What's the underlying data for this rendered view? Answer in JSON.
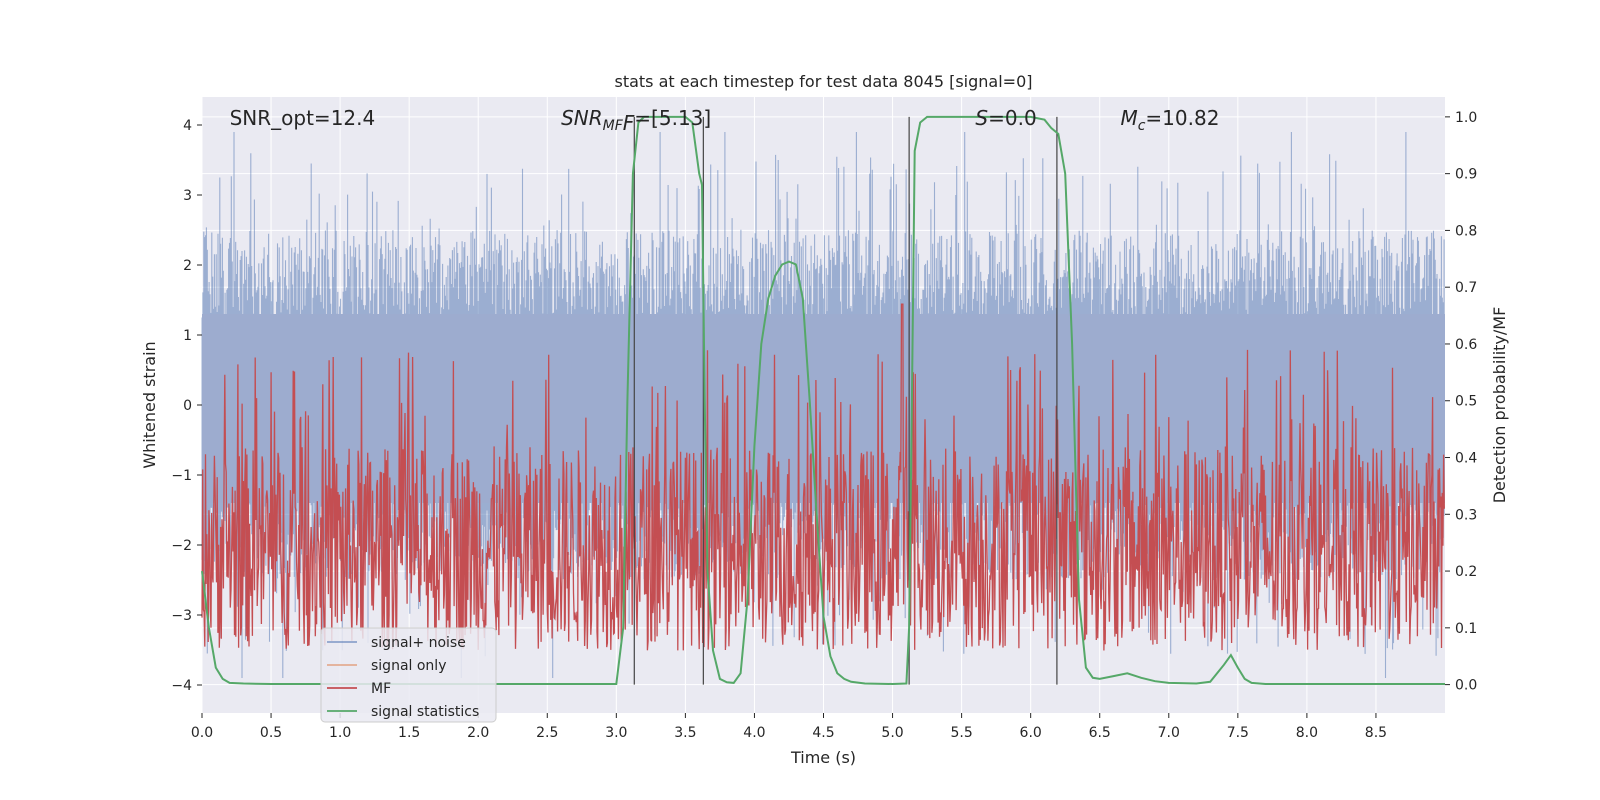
{
  "chart_data": {
    "type": "line",
    "title": "stats at each timestep for test data 8045 [signal=0]",
    "xlabel": "Time (s)",
    "ylabel_left": "Whitened strain",
    "ylabel_right": "Detection probability/MF",
    "xlim": [
      0.0,
      9.0
    ],
    "ylim_left": [
      -4.4,
      4.4
    ],
    "ylim_right": [
      -0.05,
      1.035
    ],
    "x_ticks": [
      "0.0",
      "0.5",
      "1.0",
      "1.5",
      "2.0",
      "2.5",
      "3.0",
      "3.5",
      "4.0",
      "4.5",
      "5.0",
      "5.5",
      "6.0",
      "6.5",
      "7.0",
      "7.5",
      "8.0",
      "8.5"
    ],
    "x_tick_values": [
      0.0,
      0.5,
      1.0,
      1.5,
      2.0,
      2.5,
      3.0,
      3.5,
      4.0,
      4.5,
      5.0,
      5.5,
      6.0,
      6.5,
      7.0,
      7.5,
      8.0,
      8.5
    ],
    "y_ticks_left": [
      "4",
      "3",
      "2",
      "1",
      "0",
      "−1",
      "−2",
      "−3",
      "−4"
    ],
    "y_tick_values_left": [
      4,
      3,
      2,
      1,
      0,
      -1,
      -2,
      -3,
      -4
    ],
    "y_ticks_right": [
      "1.0",
      "0.9",
      "0.8",
      "0.7",
      "0.6",
      "0.5",
      "0.4",
      "0.3",
      "0.2",
      "0.1",
      "0.0"
    ],
    "y_tick_values_right": [
      1.0,
      0.9,
      0.8,
      0.7,
      0.6,
      0.5,
      0.4,
      0.3,
      0.2,
      0.1,
      0.0
    ],
    "annotations": [
      {
        "text": "SNR_opt=12.4",
        "x": 0.2
      },
      {
        "text": "SNR",
        "sub": "MF",
        "rest": "F=[5.13]",
        "x": 2.6,
        "italic": true
      },
      {
        "text": "S",
        "rest": "=0.0",
        "x": 5.6,
        "italic": true
      },
      {
        "text": "M",
        "sub": "c",
        "rest": "=10.82",
        "x": 6.65,
        "italic": true
      }
    ],
    "legend": {
      "placement": "lower-left",
      "entries": [
        {
          "label": "signal+ noise",
          "color": "#4c72b0"
        },
        {
          "label": "signal only",
          "color": "#dd8452"
        },
        {
          "label": "MF",
          "color": "#c44e52"
        },
        {
          "label": "signal statistics",
          "color": "#55a868"
        }
      ]
    },
    "series": [
      {
        "name": "signal+ noise",
        "description": "dense whitened strain noise, roughly within ±2.5 with spikes to ±4",
        "amplitude": 2.5
      },
      {
        "name": "signal only",
        "values": []
      },
      {
        "name": "MF",
        "description": "matched filter output between 0.0 and 0.6 (right axis), spike ~0.67 near t=5.07",
        "range": [
          0.0,
          0.6
        ]
      },
      {
        "name": "signal statistics",
        "x": [
          0.0,
          0.05,
          0.1,
          0.15,
          0.2,
          0.3,
          0.5,
          1.0,
          2.0,
          3.0,
          3.05,
          3.08,
          3.12,
          3.16,
          3.2,
          3.22,
          3.3,
          3.5,
          3.55,
          3.6,
          3.62,
          3.64,
          3.66,
          3.7,
          3.75,
          3.8,
          3.85,
          3.9,
          3.95,
          4.0,
          4.05,
          4.1,
          4.15,
          4.2,
          4.25,
          4.3,
          4.35,
          4.4,
          4.45,
          4.5,
          4.55,
          4.6,
          4.65,
          4.7,
          4.8,
          5.0,
          5.1,
          5.12,
          5.14,
          5.16,
          5.2,
          5.25,
          5.3,
          6.0,
          6.1,
          6.15,
          6.2,
          6.25,
          6.3,
          6.35,
          6.4,
          6.45,
          6.5,
          6.6,
          6.7,
          6.8,
          6.9,
          7.0,
          7.2,
          7.3,
          7.35,
          7.4,
          7.45,
          7.5,
          7.55,
          7.6,
          7.7,
          8.0,
          9.0
        ],
        "values": [
          0.2,
          0.1,
          0.03,
          0.01,
          0.003,
          0.002,
          0.001,
          0.001,
          0.001,
          0.001,
          0.1,
          0.5,
          0.9,
          0.99,
          1.0,
          1.0,
          1.0,
          1.0,
          0.99,
          0.9,
          0.88,
          0.5,
          0.2,
          0.06,
          0.01,
          0.004,
          0.003,
          0.02,
          0.15,
          0.42,
          0.6,
          0.68,
          0.72,
          0.74,
          0.745,
          0.74,
          0.68,
          0.5,
          0.3,
          0.12,
          0.05,
          0.02,
          0.01,
          0.005,
          0.002,
          0.001,
          0.002,
          0.1,
          0.5,
          0.94,
          0.99,
          1.0,
          1.0,
          1.0,
          0.995,
          0.98,
          0.97,
          0.9,
          0.6,
          0.15,
          0.03,
          0.012,
          0.01,
          0.015,
          0.02,
          0.012,
          0.006,
          0.003,
          0.002,
          0.005,
          0.02,
          0.035,
          0.052,
          0.03,
          0.01,
          0.003,
          0.001,
          0.001,
          0.001
        ]
      }
    ],
    "vertical_lines_x": [
      3.13,
      3.63,
      5.12,
      6.19
    ],
    "grid": true
  }
}
